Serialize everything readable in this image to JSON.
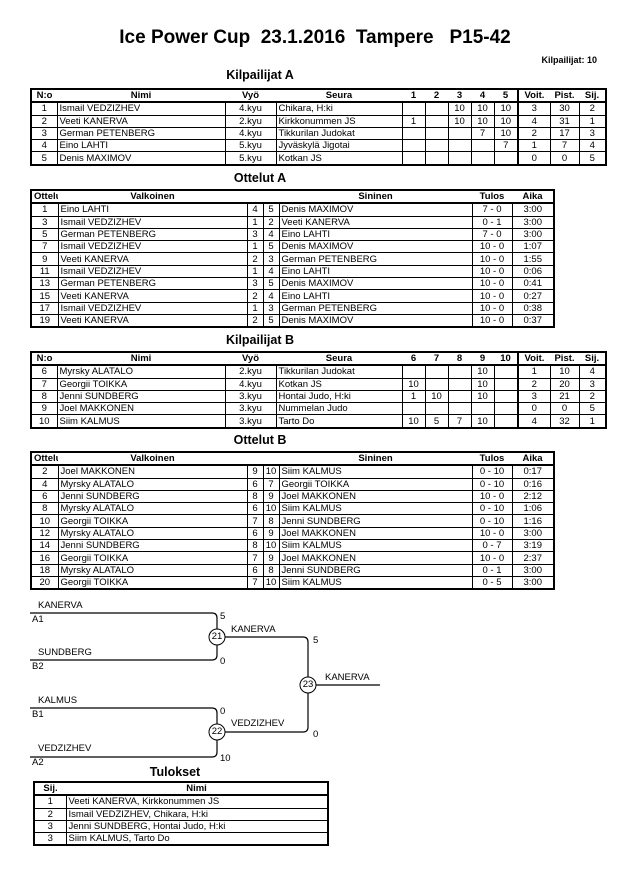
{
  "header": {
    "title": "Ice Power Cup  23.1.2016  Tampere   P15-42",
    "competitors_count": "Kilpailijat: 10"
  },
  "kilpailijat_a": {
    "title": "Kilpailijat A",
    "headers": [
      "N:o",
      "Nimi",
      "Vyö",
      "Seura",
      "1",
      "2",
      "3",
      "4",
      "5",
      "Voit.",
      "Pist.",
      "Sij."
    ],
    "rows": [
      [
        "1",
        "Ismail VEDZIZHEV",
        "4.kyu",
        "Chikara, H:ki",
        "",
        "",
        "10",
        "10",
        "10",
        "3",
        "30",
        "2"
      ],
      [
        "2",
        "Veeti KANERVA",
        "2.kyu",
        "Kirkkonummen JS",
        "1",
        "",
        "10",
        "10",
        "10",
        "4",
        "31",
        "1"
      ],
      [
        "3",
        "German PETENBERG",
        "4.kyu",
        "Tikkurilan Judokat",
        "",
        "",
        "",
        "7",
        "10",
        "2",
        "17",
        "3"
      ],
      [
        "4",
        "Eino LAHTI",
        "5.kyu",
        "Jyväskylä Jigotai",
        "",
        "",
        "",
        "",
        "7",
        "1",
        "7",
        "4"
      ],
      [
        "5",
        "Denis MAXIMOV",
        "5.kyu",
        "Kotkan JS",
        "",
        "",
        "",
        "",
        "",
        "0",
        "0",
        "5"
      ]
    ]
  },
  "ottelut_a": {
    "title": "Ottelut A",
    "headers": [
      "Ottelu",
      "Valkoinen",
      "Sininen",
      "Tulos",
      "Aika"
    ],
    "rows": [
      [
        "1",
        "Eino LAHTI",
        "4",
        "5",
        "Denis MAXIMOV",
        "7 - 0",
        "3:00"
      ],
      [
        "3",
        "Ismail VEDZIZHEV",
        "1",
        "2",
        "Veeti KANERVA",
        "0 - 1",
        "3:00"
      ],
      [
        "5",
        "German PETENBERG",
        "3",
        "4",
        "Eino LAHTI",
        "7 - 0",
        "3:00"
      ],
      [
        "7",
        "Ismail VEDZIZHEV",
        "1",
        "5",
        "Denis MAXIMOV",
        "10 - 0",
        "1:07"
      ],
      [
        "9",
        "Veeti KANERVA",
        "2",
        "3",
        "German PETENBERG",
        "10 - 0",
        "1:55"
      ],
      [
        "11",
        "Ismail VEDZIZHEV",
        "1",
        "4",
        "Eino LAHTI",
        "10 - 0",
        "0:06"
      ],
      [
        "13",
        "German PETENBERG",
        "3",
        "5",
        "Denis MAXIMOV",
        "10 - 0",
        "0:41"
      ],
      [
        "15",
        "Veeti KANERVA",
        "2",
        "4",
        "Eino LAHTI",
        "10 - 0",
        "0:27"
      ],
      [
        "17",
        "Ismail VEDZIZHEV",
        "1",
        "3",
        "German PETENBERG",
        "10 - 0",
        "0:38"
      ],
      [
        "19",
        "Veeti KANERVA",
        "2",
        "5",
        "Denis MAXIMOV",
        "10 - 0",
        "0:37"
      ]
    ]
  },
  "kilpailijat_b": {
    "title": "Kilpailijat B",
    "headers": [
      "N:o",
      "Nimi",
      "Vyö",
      "Seura",
      "6",
      "7",
      "8",
      "9",
      "10",
      "Voit.",
      "Pist.",
      "Sij."
    ],
    "rows": [
      [
        "6",
        "Myrsky ALATALO",
        "2.kyu",
        "Tikkurilan Judokat",
        "",
        "",
        "",
        "10",
        "",
        "1",
        "10",
        "4"
      ],
      [
        "7",
        "Georgii TOIKKA",
        "4.kyu",
        "Kotkan JS",
        "10",
        "",
        "",
        "10",
        "",
        "2",
        "20",
        "3"
      ],
      [
        "8",
        "Jenni SUNDBERG",
        "3.kyu",
        "Hontai Judo, H:ki",
        "1",
        "10",
        "",
        "10",
        "",
        "3",
        "21",
        "2"
      ],
      [
        "9",
        "Joel MAKKONEN",
        "3.kyu",
        "Nummelan Judo",
        "",
        "",
        "",
        "",
        "",
        "0",
        "0",
        "5"
      ],
      [
        "10",
        "Siim KALMUS",
        "3.kyu",
        "Tarto Do",
        "10",
        "5",
        "7",
        "10",
        "",
        "4",
        "32",
        "1"
      ]
    ]
  },
  "ottelut_b": {
    "title": "Ottelut B",
    "headers": [
      "Ottelu",
      "Valkoinen",
      "Sininen",
      "Tulos",
      "Aika"
    ],
    "rows": [
      [
        "2",
        "Joel MAKKONEN",
        "9",
        "10",
        "Siim KALMUS",
        "0 - 10",
        "0:17"
      ],
      [
        "4",
        "Myrsky ALATALO",
        "6",
        "7",
        "Georgii TOIKKA",
        "0 - 10",
        "0:16"
      ],
      [
        "6",
        "Jenni SUNDBERG",
        "8",
        "9",
        "Joel MAKKONEN",
        "10 - 0",
        "2:12"
      ],
      [
        "8",
        "Myrsky ALATALO",
        "6",
        "10",
        "Siim KALMUS",
        "0 - 10",
        "1:06"
      ],
      [
        "10",
        "Georgii TOIKKA",
        "7",
        "8",
        "Jenni SUNDBERG",
        "0 - 10",
        "1:16"
      ],
      [
        "12",
        "Myrsky ALATALO",
        "6",
        "9",
        "Joel MAKKONEN",
        "10 - 0",
        "3:00"
      ],
      [
        "14",
        "Jenni SUNDBERG",
        "8",
        "10",
        "Siim KALMUS",
        "0 - 7",
        "3:19"
      ],
      [
        "16",
        "Georgii TOIKKA",
        "7",
        "9",
        "Joel MAKKONEN",
        "10 - 0",
        "2:37"
      ],
      [
        "18",
        "Myrsky ALATALO",
        "6",
        "8",
        "Jenni SUNDBERG",
        "0 - 1",
        "3:00"
      ],
      [
        "20",
        "Georgii TOIKKA",
        "7",
        "10",
        "Siim KALMUS",
        "0 - 5",
        "3:00"
      ]
    ]
  },
  "bracket": {
    "sf1": {
      "match": "21",
      "top_name": "KANERVA",
      "top_seed": "A1",
      "top_score": "5",
      "bottom_name": "SUNDBERG",
      "bottom_seed": "B2",
      "bottom_score": "0",
      "winner": "KANERVA"
    },
    "sf2": {
      "match": "22",
      "top_name": "KALMUS",
      "top_seed": "B1",
      "top_score": "0",
      "bottom_name": "VEDZIZHEV",
      "bottom_seed": "A2",
      "bottom_score": "10",
      "winner": "VEDZIZHEV"
    },
    "final": {
      "match": "23",
      "top_score": "5",
      "bottom_score": "0",
      "winner": "KANERVA"
    }
  },
  "tulokset": {
    "title": "Tulokset",
    "headers": [
      "Sij.",
      "Nimi"
    ],
    "rows": [
      [
        "1",
        "Veeti KANERVA, Kirkkonummen JS"
      ],
      [
        "2",
        "Ismail VEDZIZHEV, Chikara, H:ki"
      ],
      [
        "3",
        "Jenni SUNDBERG, Hontai Judo, H:ki"
      ],
      [
        "3",
        "Siim KALMUS, Tarto Do"
      ]
    ]
  }
}
